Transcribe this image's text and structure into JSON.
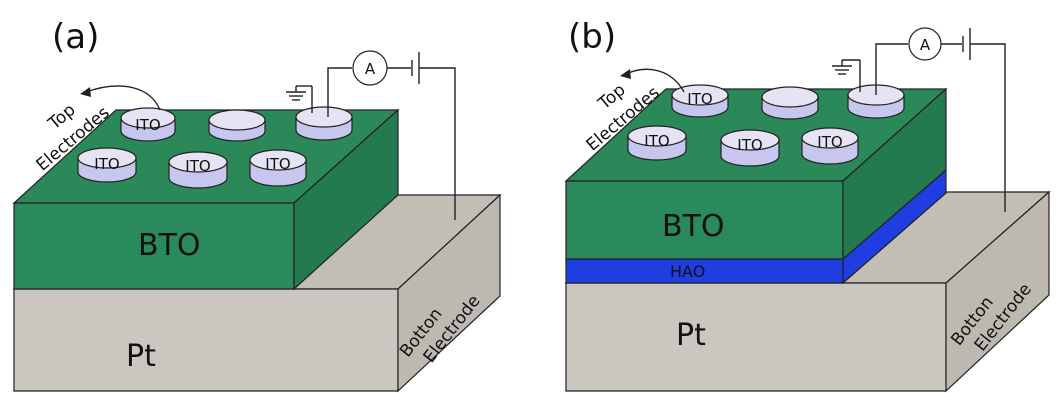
{
  "colors": {
    "pt_front": "#cbc7c0",
    "pt_top": "#c2beb6",
    "pt_side": "#bdb8b0",
    "bto_front": "#2b8a5c",
    "bto_top": "#2a8859",
    "bto_side": "#237a4f",
    "hao": "#1f3de0",
    "electrode_side": "#c7c6ee",
    "electrode_top": "#e6e3f5"
  },
  "panel_a": {
    "label": "(a)",
    "substrate_label": "Pt",
    "film_label": "BTO",
    "top_electrodes_label_1": "Top",
    "top_electrodes_label_2": "Electrodes",
    "bottom_electrode_label_1": "Botton",
    "bottom_electrode_label_2": "Electrode",
    "ammeter_label": "A",
    "electrodes": [
      "ITO",
      "",
      "",
      "ITO",
      "ITO",
      "ITO"
    ]
  },
  "panel_b": {
    "label": "(b)",
    "substrate_label": "Pt",
    "film_label": "BTO",
    "interlayer_label": "HAO",
    "top_electrodes_label_1": "Top",
    "top_electrodes_label_2": "Electrodes",
    "bottom_electrode_label_1": "Botton",
    "bottom_electrode_label_2": "Electrode",
    "ammeter_label": "A",
    "electrodes": [
      "ITO",
      "",
      "",
      "ITO",
      "ITO",
      "ITO"
    ]
  }
}
